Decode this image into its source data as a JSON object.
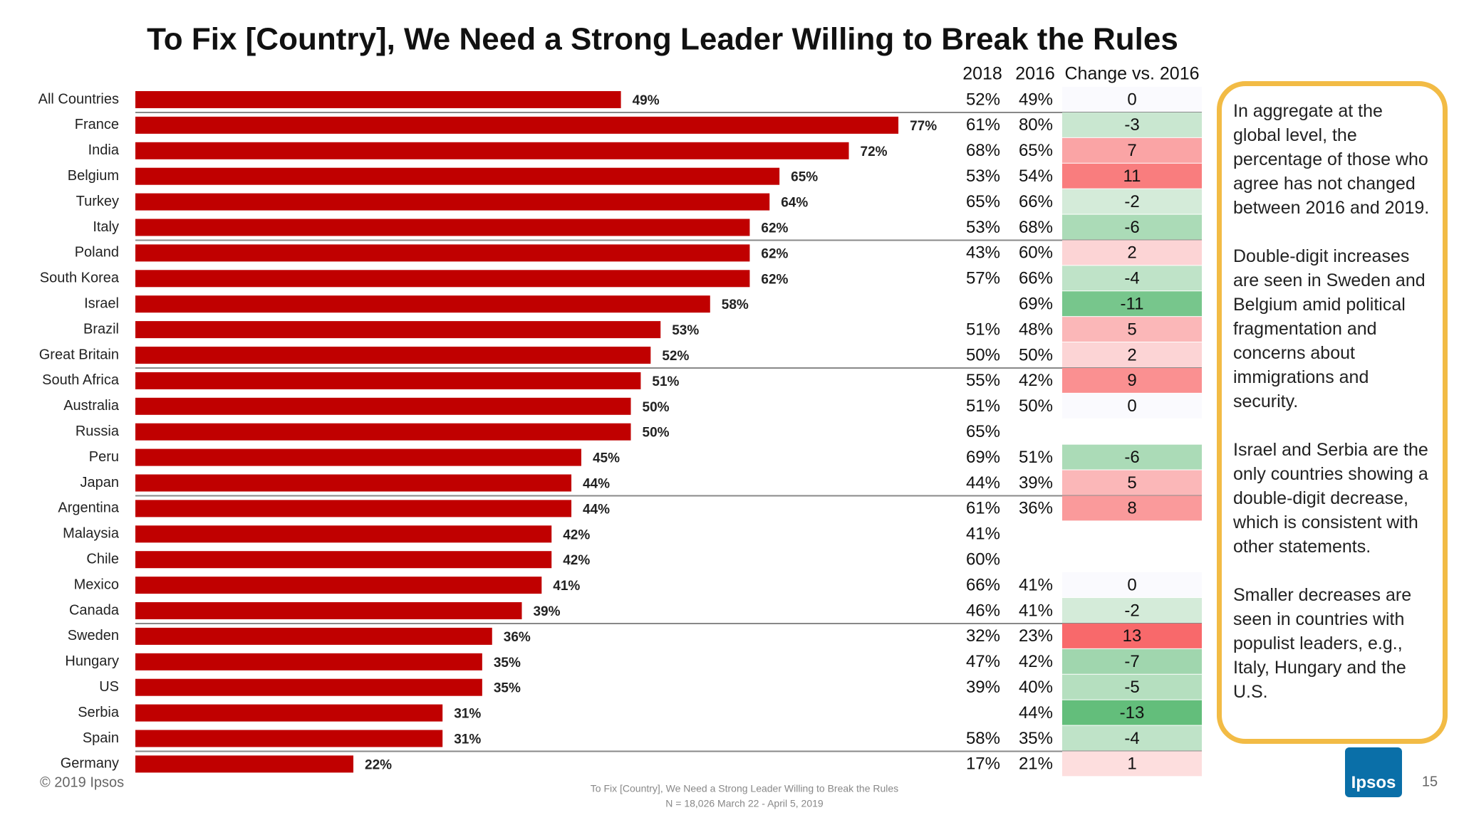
{
  "chart_data": {
    "type": "bar",
    "orientation": "horizontal",
    "title": "To Fix [Country], We Need a Strong Leader Willing to Break the Rules",
    "categories": [
      "All Countries",
      "France",
      "India",
      "Belgium",
      "Turkey",
      "Italy",
      "Poland",
      "South Korea",
      "Israel",
      "Brazil",
      "Great Britain",
      "South Africa",
      "Australia",
      "Russia",
      "Peru",
      "Japan",
      "Argentina",
      "Malaysia",
      "Chile",
      "Mexico",
      "Canada",
      "Sweden",
      "Hungary",
      "US",
      "Serbia",
      "Spain",
      "Germany"
    ],
    "values": [
      49,
      77,
      72,
      65,
      64,
      62,
      62,
      62,
      58,
      53,
      52,
      51,
      50,
      50,
      45,
      44,
      44,
      42,
      42,
      41,
      39,
      36,
      35,
      35,
      31,
      31,
      22
    ],
    "value_labels": [
      "49%",
      "77%",
      "72%",
      "65%",
      "64%",
      "62%",
      "62%",
      "62%",
      "58%",
      "53%",
      "52%",
      "51%",
      "50%",
      "50%",
      "45%",
      "44%",
      "44%",
      "42%",
      "42%",
      "41%",
      "39%",
      "36%",
      "35%",
      "35%",
      "31%",
      "31%",
      "22%"
    ],
    "color": "#c00000"
  },
  "table": {
    "columns": [
      "2018",
      "2016",
      "Change vs. 2016"
    ],
    "y2018": [
      "52%",
      "61%",
      "68%",
      "53%",
      "65%",
      "53%",
      "43%",
      "57%",
      null,
      "51%",
      "50%",
      "55%",
      "51%",
      "65%",
      "69%",
      "44%",
      "61%",
      "41%",
      "60%",
      "66%",
      "46%",
      "32%",
      "47%",
      "39%",
      null,
      "58%",
      "17%"
    ],
    "y2016": [
      "49%",
      "80%",
      "65%",
      "54%",
      "66%",
      "68%",
      "60%",
      "66%",
      "69%",
      "48%",
      "50%",
      "42%",
      "50%",
      null,
      "51%",
      "39%",
      "36%",
      null,
      null,
      "41%",
      "41%",
      "23%",
      "42%",
      "40%",
      "44%",
      "35%",
      "21%"
    ],
    "change": [
      0,
      -3,
      7,
      11,
      -2,
      -6,
      2,
      -4,
      -11,
      5,
      2,
      9,
      0,
      null,
      -6,
      5,
      8,
      null,
      null,
      0,
      -2,
      13,
      -7,
      -5,
      -13,
      -4,
      1
    ]
  },
  "notes": [
    "In aggregate at the global level, the percentage of those who agree has not changed between 2016 and 2019.",
    "Double-digit increases are seen in Sweden and Belgium amid political fragmentation and concerns about immigrations and security.",
    "Israel and Serbia are the only countries showing a double-digit decrease, which is consistent with other statements.",
    "Smaller decreases are seen in countries with populist leaders, e.g., Italy, Hungary and the U.S."
  ],
  "footer": {
    "copyright": "© 2019 Ipsos",
    "source": [
      "To Fix [Country], We Need a Strong Leader Willing to Break the Rules",
      "N = 18,026  March 22 - April 5, 2019"
    ],
    "logo": "Ipsos",
    "page": "15"
  }
}
